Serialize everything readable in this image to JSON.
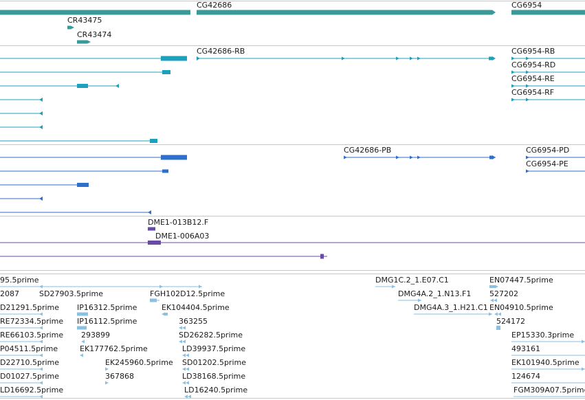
{
  "tracks": {
    "genes": {
      "color": "#3a9a9a",
      "features": [
        {
          "label": "",
          "strand": "+"
        },
        {
          "label": "CG42686",
          "strand": "+"
        },
        {
          "label": "CG6954",
          "strand": "+"
        },
        {
          "label": "CR43475",
          "strand": "+"
        },
        {
          "label": "CR43474",
          "strand": "+"
        }
      ]
    },
    "transcripts_rna": {
      "color": "#1ea0bd",
      "features": [
        {
          "label": "CG42686-RB"
        },
        {
          "label": "CG6954-RB"
        },
        {
          "label": "CG6954-RD"
        },
        {
          "label": "CG6954-RE"
        },
        {
          "label": "CG6954-RF"
        }
      ]
    },
    "transcripts_protein": {
      "color": "#2e6fcc",
      "features": [
        {
          "label": "CG42686-PB"
        },
        {
          "label": "CG6954-PD"
        },
        {
          "label": "CG6954-PE"
        }
      ]
    },
    "ests": {
      "color": "#6a4aa8",
      "features": [
        {
          "label": "DME1-013B12.F"
        },
        {
          "label": "DME1-006A03"
        }
      ]
    },
    "cdna_reads": {
      "color": "#8ac0e0",
      "features": [
        {
          "label": "95.5prime"
        },
        {
          "label": "DMG1C.2_1.E07.C1"
        },
        {
          "label": "EN07447.5prime"
        },
        {
          "label": "2087"
        },
        {
          "label": "SD27903.5prime"
        },
        {
          "label": "FGH102D12.5prime"
        },
        {
          "label": "DMG4A.2_1.N13.F1"
        },
        {
          "label": "527202"
        },
        {
          "label": "D21291.5prime"
        },
        {
          "label": "IP16312.5prime"
        },
        {
          "label": "EK104404.5prime"
        },
        {
          "label": "DMG4A.3_1.H21.C1"
        },
        {
          "label": "EN04910.5prime"
        },
        {
          "label": "RE72334.5prime"
        },
        {
          "label": "IP16112.5prime"
        },
        {
          "label": "363255"
        },
        {
          "label": "524172"
        },
        {
          "label": "RE66103.5prime"
        },
        {
          "label": "293899"
        },
        {
          "label": "SD26282.5prime"
        },
        {
          "label": "EP15330.3prime"
        },
        {
          "label": "P04511.5prime"
        },
        {
          "label": "EK177762.5prime"
        },
        {
          "label": "LD39937.5prime"
        },
        {
          "label": "493161"
        },
        {
          "label": "D22710.5prime"
        },
        {
          "label": "EK245960.5prime"
        },
        {
          "label": "SD01202.5prime"
        },
        {
          "label": "EK101940.5prime"
        },
        {
          "label": "D01027.5prime"
        },
        {
          "label": "367868"
        },
        {
          "label": "LD38168.5prime"
        },
        {
          "label": "124674"
        },
        {
          "label": "LD16692.5prime"
        },
        {
          "label": "LD16240.5prime"
        },
        {
          "label": "FGM309A07.5prime"
        }
      ]
    }
  }
}
